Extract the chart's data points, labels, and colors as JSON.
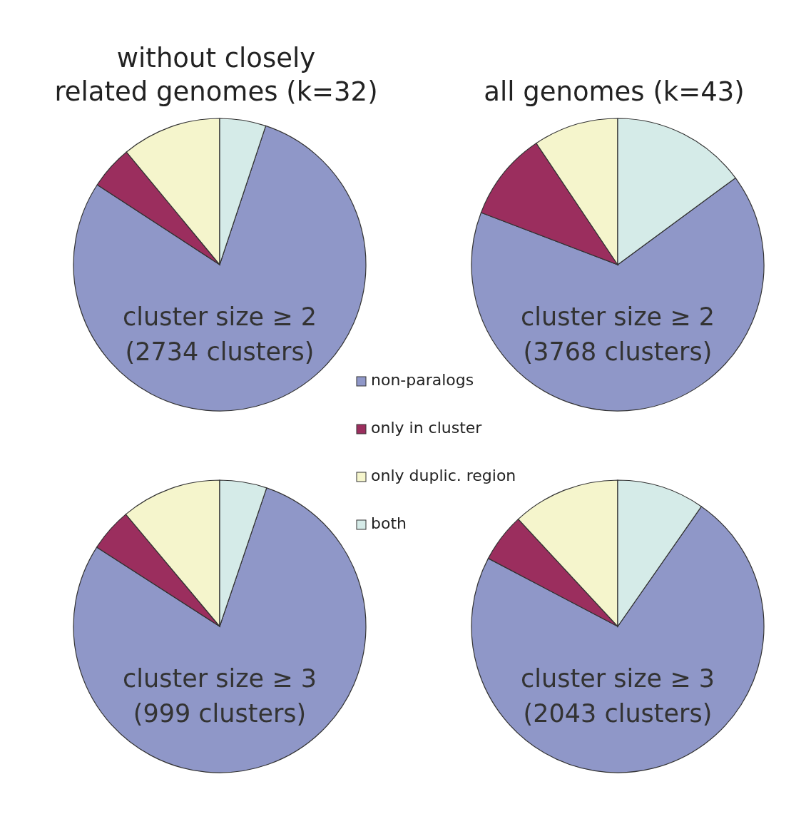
{
  "chart_data": [
    {
      "type": "pie",
      "title": "without closely related genomes (k=32)",
      "categories": [
        "non-paralogs",
        "only in cluster",
        "only duplic. region",
        "both"
      ],
      "values": [
        79.1,
        4.8,
        11.0,
        5.1
      ],
      "colors": [
        "#8f97c8",
        "#9b2e5e",
        "#f5f5cc",
        "#d5ebe8"
      ],
      "annotations": [
        "cluster size ≥ 2",
        "(2734 clusters)"
      ],
      "legend": "right"
    },
    {
      "type": "pie",
      "title": "all genomes (k=43)",
      "categories": [
        null,
        null,
        null,
        null
      ],
      "values": [
        65.9,
        9.8,
        9.4,
        14.9
      ],
      "colors": [
        "#8f97c8",
        "#9b2e5e",
        "#f5f5cc",
        "#d5ebe8"
      ],
      "annotations": [
        "cluster size ≥ 2",
        "(3768 clusters)"
      ]
    },
    {
      "type": "pie",
      "categories": [
        null,
        null,
        null,
        null
      ],
      "values": [
        78.9,
        4.8,
        11.1,
        5.2
      ],
      "colors": [
        "#8f97c8",
        "#9b2e5e",
        "#f5f5cc",
        "#d5ebe8"
      ],
      "annotations": [
        "cluster size ≥ 3",
        "(999 clusters)"
      ]
    },
    {
      "type": "pie",
      "categories": [
        null,
        null,
        null,
        null
      ],
      "values": [
        73.0,
        5.4,
        11.9,
        9.7
      ],
      "colors": [
        "#8f97c8",
        "#9b2e5e",
        "#f5f5cc",
        "#d5ebe8"
      ],
      "annotations": [
        "cluster size ≥ 3",
        "(2043 clusters)"
      ]
    }
  ]
}
